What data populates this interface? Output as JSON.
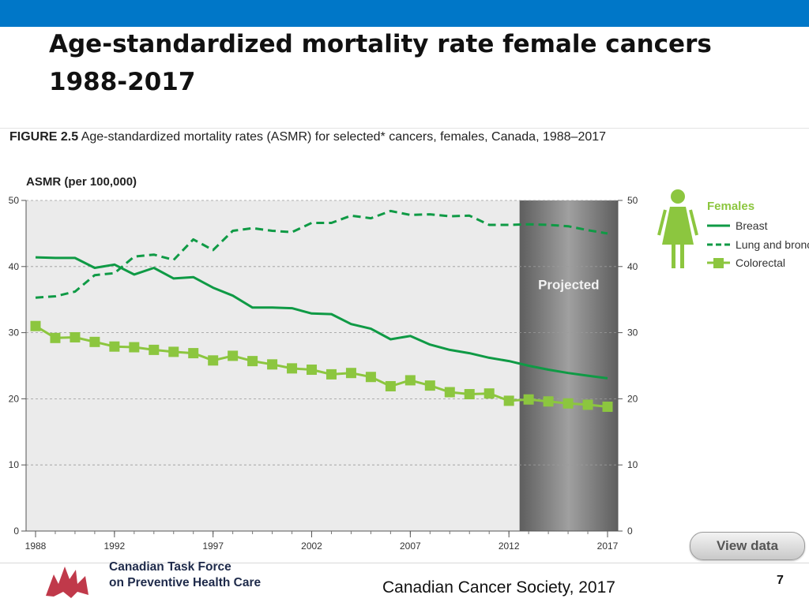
{
  "slide": {
    "title_line1": "Age-standardized mortality rate female cancers",
    "title_line2": "1988-2017",
    "source": "Canadian Cancer Society, 2017",
    "page_number": "7",
    "org_line1": "Canadian Task Force",
    "org_line2": "on Preventive Health Care",
    "view_data_label": "View data"
  },
  "colors": {
    "topbar": "#0077c8",
    "breast": "#0f9a45",
    "lung": "#0f9a45",
    "colorectal": "#8cc63f",
    "plot_bg": "#ebebeb",
    "projected_band": "#7a7a7a",
    "logo": "#c0394a"
  },
  "chart_data": {
    "type": "line",
    "figure_label": "FIGURE 2.5",
    "title": "Age-standardized mortality rates (ASMR) for selected* cancers, females, Canada, 1988–2017",
    "ylabel": "ASMR (per 100,000)",
    "xlabel": "",
    "ylim": [
      0,
      50
    ],
    "yticks": [
      0,
      10,
      20,
      30,
      40,
      50
    ],
    "xlim": [
      1988,
      2017
    ],
    "xticks": [
      1988,
      1992,
      1997,
      2002,
      2007,
      2012,
      2017
    ],
    "grid": "horizontal dashed",
    "projected": {
      "label": "Projected",
      "from": 2013,
      "to": 2017
    },
    "legend": {
      "title": "Females",
      "position": "right"
    },
    "x": [
      1988,
      1989,
      1990,
      1991,
      1992,
      1993,
      1994,
      1995,
      1996,
      1997,
      1998,
      1999,
      2000,
      2001,
      2002,
      2003,
      2004,
      2005,
      2006,
      2007,
      2008,
      2009,
      2010,
      2011,
      2012,
      2013,
      2014,
      2015,
      2016,
      2017
    ],
    "series": [
      {
        "name": "Breast",
        "style": "solid",
        "marker": "none",
        "values": [
          41.4,
          41.3,
          41.3,
          39.8,
          40.3,
          38.8,
          39.8,
          38.2,
          38.4,
          36.8,
          35.6,
          33.8,
          33.8,
          33.7,
          32.9,
          32.8,
          31.3,
          30.6,
          29.0,
          29.5,
          28.2,
          27.4,
          26.9,
          26.2,
          25.7,
          25.0,
          24.4,
          23.9,
          23.5,
          23.1
        ]
      },
      {
        "name": "Lung and bronchus",
        "style": "dashed",
        "marker": "none",
        "values": [
          35.3,
          35.5,
          36.2,
          38.7,
          39.0,
          41.5,
          41.8,
          41.0,
          44.1,
          42.5,
          45.4,
          45.8,
          45.4,
          45.2,
          46.6,
          46.6,
          47.7,
          47.3,
          48.4,
          47.8,
          47.9,
          47.6,
          47.7,
          46.3,
          46.3,
          46.4,
          46.3,
          46.1,
          45.5,
          45.0
        ]
      },
      {
        "name": "Colorectal",
        "style": "solid",
        "marker": "square",
        "values": [
          31.0,
          29.2,
          29.3,
          28.6,
          27.9,
          27.8,
          27.4,
          27.1,
          26.9,
          25.8,
          26.5,
          25.7,
          25.2,
          24.6,
          24.4,
          23.7,
          23.9,
          23.3,
          21.9,
          22.8,
          22.0,
          21.0,
          20.7,
          20.8,
          19.7,
          19.9,
          19.6,
          19.3,
          19.1,
          18.8
        ]
      }
    ]
  }
}
